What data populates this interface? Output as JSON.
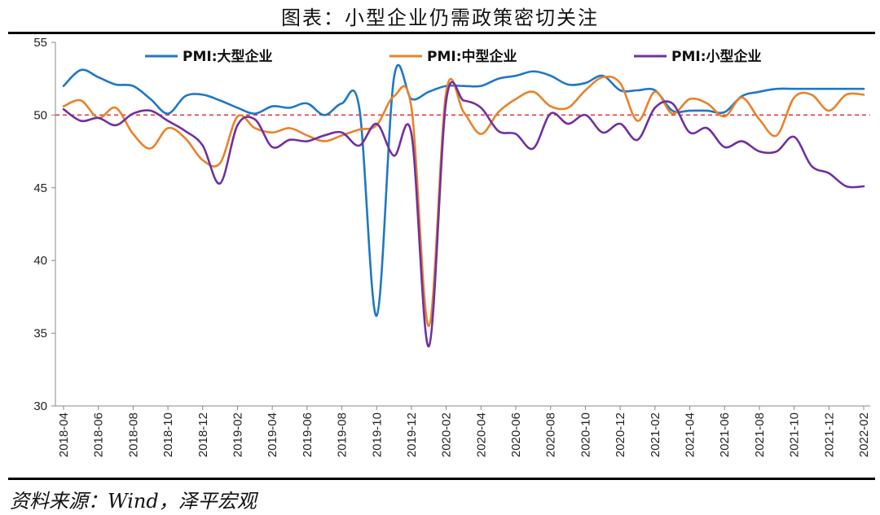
{
  "title": "图表：小型企业仍需政策密切关注",
  "source": "资料来源：Wind，泽平宏观",
  "chart_data": {
    "type": "line",
    "ylim": [
      30,
      55
    ],
    "yticks": [
      30,
      35,
      40,
      45,
      50,
      55
    ],
    "x_start": "2018-04",
    "x_end": "2022-02",
    "x_tick_labels": [
      "2018-04",
      "2018-06",
      "2018-08",
      "2018-10",
      "2018-12",
      "2019-02",
      "2019-04",
      "2019-06",
      "2019-08",
      "2019-10",
      "2019-12",
      "2020-02",
      "2020-04",
      "2020-06",
      "2020-08",
      "2020-10",
      "2020-12",
      "2021-02",
      "2021-04",
      "2021-06",
      "2021-08",
      "2021-10",
      "2021-12",
      "2022-02"
    ],
    "x": [
      "2018-04",
      "2018-05",
      "2018-06",
      "2018-07",
      "2018-08",
      "2018-09",
      "2018-10",
      "2018-11",
      "2018-12",
      "2019-01",
      "2019-02",
      "2019-03",
      "2019-04",
      "2019-05",
      "2019-06",
      "2019-07",
      "2019-08",
      "2019-09",
      "2019-10",
      "2019-11",
      "2019-12",
      "2020-01",
      "2020-02",
      "2020-03",
      "2020-04",
      "2020-05",
      "2020-06",
      "2020-07",
      "2020-08",
      "2020-09",
      "2020-10",
      "2020-11",
      "2020-12",
      "2021-01",
      "2021-02",
      "2021-03",
      "2021-04",
      "2021-05",
      "2021-06",
      "2021-07",
      "2021-08",
      "2021-09",
      "2021-10",
      "2021-11",
      "2021-12",
      "2022-01",
      "2022-02"
    ],
    "reference_line": {
      "y": 50,
      "color": "#e03030",
      "style": "dashed"
    },
    "legend_position": "top",
    "series": [
      {
        "name": "PMI:大型企业",
        "color": "#1f77c4",
        "values": [
          52.0,
          53.1,
          52.6,
          52.1,
          52.0,
          51.1,
          50.1,
          51.3,
          51.4,
          51.0,
          50.5,
          50.1,
          50.6,
          50.5,
          50.8,
          50.0,
          50.8,
          50.5,
          36.2,
          52.6,
          51.1,
          51.6,
          52.0,
          52.0,
          52.0,
          52.5,
          52.7,
          53.0,
          52.7,
          52.1,
          52.2,
          52.7,
          51.7,
          51.7,
          51.7,
          50.3,
          50.3,
          50.3,
          50.2,
          51.3,
          51.6,
          51.8,
          51.8,
          51.8,
          51.8,
          51.8,
          51.8
        ]
      },
      {
        "name": "PMI:中型企业",
        "color": "#e8822a",
        "values": [
          50.6,
          51.0,
          49.8,
          50.5,
          48.7,
          47.7,
          49.1,
          48.4,
          46.9,
          46.7,
          49.9,
          49.1,
          48.8,
          49.1,
          48.6,
          48.2,
          48.6,
          49.0,
          49.3,
          51.3,
          50.5,
          35.5,
          51.6,
          50.2,
          48.7,
          50.2,
          51.1,
          51.6,
          50.6,
          50.5,
          51.7,
          52.6,
          52.2,
          49.6,
          51.6,
          50.1,
          51.1,
          50.8,
          49.9,
          51.2,
          49.7,
          48.6,
          51.2,
          51.4,
          50.3,
          51.4,
          51.4
        ]
      },
      {
        "name": "PMI:小型企业",
        "color": "#7030a0",
        "values": [
          50.4,
          49.6,
          49.8,
          49.3,
          50.1,
          50.3,
          49.6,
          48.9,
          47.9,
          45.3,
          49.3,
          49.7,
          47.8,
          48.3,
          48.2,
          48.6,
          48.8,
          47.9,
          49.4,
          47.2,
          48.7,
          34.1,
          51.0,
          51.0,
          50.5,
          48.9,
          48.7,
          47.7,
          50.1,
          49.4,
          50.0,
          48.8,
          49.4,
          48.3,
          50.5,
          50.8,
          48.8,
          49.1,
          47.8,
          48.2,
          47.5,
          47.5,
          48.5,
          46.5,
          46.0,
          45.1,
          45.1
        ]
      }
    ]
  }
}
